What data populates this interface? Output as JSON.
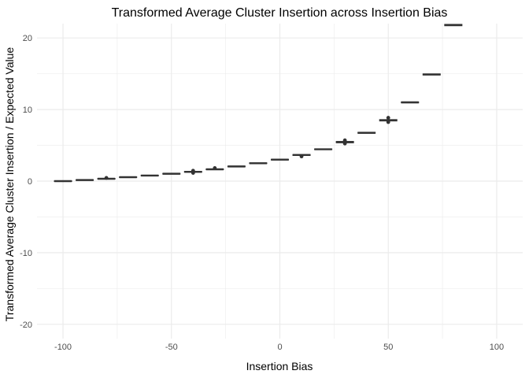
{
  "chart_data": {
    "type": "boxplot",
    "title": "Transformed Average Cluster Insertion across Insertion Bias",
    "xlabel": "Insertion Bias",
    "ylabel": "Transformed Average Cluster Insertion / Expected Value",
    "xlim": [
      -112,
      112
    ],
    "ylim": [
      -22,
      22
    ],
    "x_ticks": [
      -100,
      -50,
      0,
      50,
      100
    ],
    "x_tick_labels": [
      "-100",
      "-50",
      "0",
      "50",
      "100"
    ],
    "y_ticks": [
      -20,
      -10,
      0,
      10,
      20
    ],
    "y_tick_labels": [
      "-20",
      "-10",
      "0",
      "10",
      "20"
    ],
    "grid": true,
    "theme": "minimal",
    "box_color": "#333333",
    "grid_color": "#ebebeb",
    "box_width": 8,
    "boxes": [
      {
        "x": -100,
        "median": 0.0,
        "q1": -0.05,
        "q3": 0.05,
        "outliers": []
      },
      {
        "x": -90,
        "median": 0.15,
        "q1": 0.1,
        "q3": 0.2,
        "outliers": []
      },
      {
        "x": -80,
        "median": 0.33,
        "q1": 0.28,
        "q3": 0.38,
        "outliers": [
          0.45
        ]
      },
      {
        "x": -70,
        "median": 0.55,
        "q1": 0.5,
        "q3": 0.6,
        "outliers": []
      },
      {
        "x": -60,
        "median": 0.78,
        "q1": 0.73,
        "q3": 0.83,
        "outliers": []
      },
      {
        "x": -50,
        "median": 1.03,
        "q1": 0.98,
        "q3": 1.08,
        "outliers": []
      },
      {
        "x": -40,
        "median": 1.3,
        "q1": 1.24,
        "q3": 1.36,
        "outliers": [
          1.15,
          1.45
        ]
      },
      {
        "x": -30,
        "median": 1.65,
        "q1": 1.6,
        "q3": 1.7,
        "outliers": [
          1.82
        ]
      },
      {
        "x": -20,
        "median": 2.05,
        "q1": 2.0,
        "q3": 2.1,
        "outliers": []
      },
      {
        "x": -10,
        "median": 2.5,
        "q1": 2.45,
        "q3": 2.55,
        "outliers": []
      },
      {
        "x": 0,
        "median": 3.0,
        "q1": 2.95,
        "q3": 3.05,
        "outliers": []
      },
      {
        "x": 10,
        "median": 3.65,
        "q1": 3.58,
        "q3": 3.72,
        "outliers": [
          3.45
        ]
      },
      {
        "x": 20,
        "median": 4.45,
        "q1": 4.4,
        "q3": 4.5,
        "outliers": []
      },
      {
        "x": 30,
        "median": 5.45,
        "q1": 5.35,
        "q3": 5.55,
        "outliers": [
          5.25,
          5.7
        ]
      },
      {
        "x": 40,
        "median": 6.75,
        "q1": 6.68,
        "q3": 6.82,
        "outliers": []
      },
      {
        "x": 50,
        "median": 8.5,
        "q1": 8.4,
        "q3": 8.6,
        "outliers": [
          8.25,
          8.85
        ]
      },
      {
        "x": 60,
        "median": 11.0,
        "q1": 10.93,
        "q3": 11.07,
        "outliers": []
      },
      {
        "x": 70,
        "median": 14.9,
        "q1": 14.82,
        "q3": 14.98,
        "outliers": []
      },
      {
        "x": 80,
        "median": 21.8,
        "q1": 21.7,
        "q3": 21.9,
        "outliers": []
      }
    ]
  }
}
